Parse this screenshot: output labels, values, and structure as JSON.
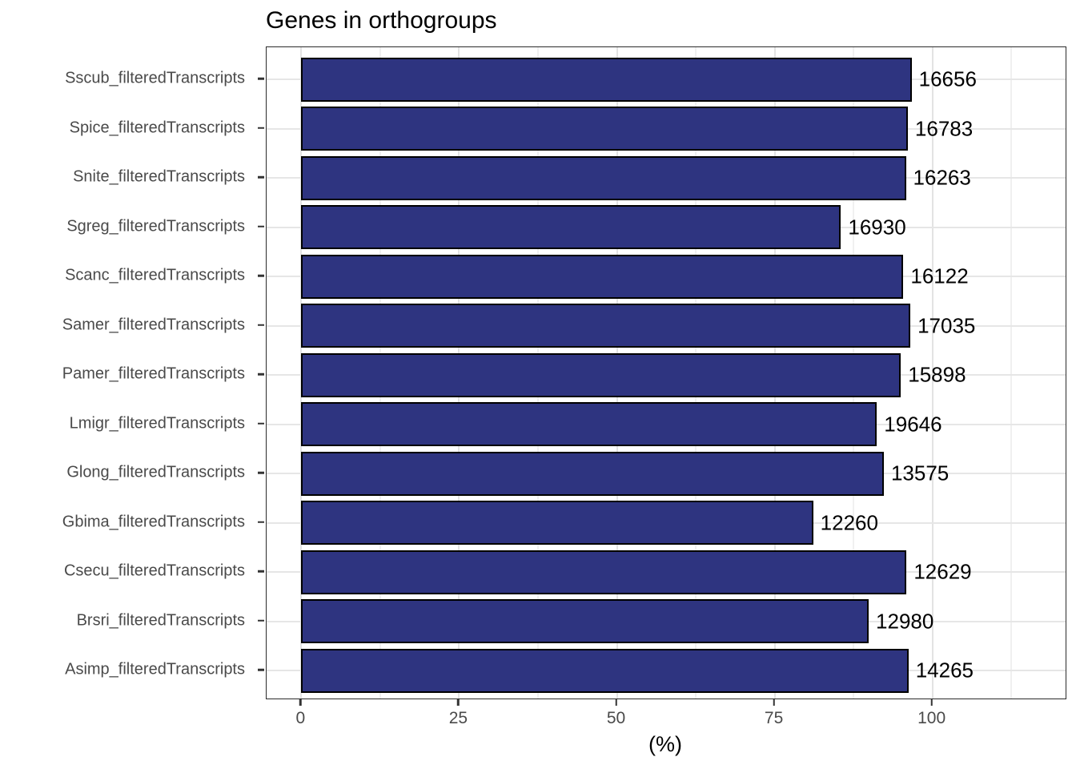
{
  "title": "Genes in orthogroups",
  "chart_data": {
    "type": "bar",
    "orientation": "horizontal",
    "title": "Genes in orthogroups",
    "xlabel": "(%)",
    "ylabel": "",
    "legend": "none",
    "grid": "x-major+minor, y-major",
    "xlim": [
      -5.5,
      121.1
    ],
    "x_ticks": [
      0,
      25,
      50,
      75,
      100
    ],
    "x_minor_ticks": [
      12.5,
      37.5,
      62.5,
      87.5,
      112.5
    ],
    "categories": [
      "Sscub_filteredTranscripts",
      "Spice_filteredTranscripts",
      "Snite_filteredTranscripts",
      "Sgreg_filteredTranscripts",
      "Scanc_filteredTranscripts",
      "Samer_filteredTranscripts",
      "Pamer_filteredTranscripts",
      "Lmigr_filteredTranscripts",
      "Glong_filteredTranscripts",
      "Gbima_filteredTranscripts",
      "Csecu_filteredTranscripts",
      "Brsri_filteredTranscripts",
      "Asimp_filteredTranscripts"
    ],
    "values_percent": [
      96.7,
      96.1,
      95.8,
      85.5,
      95.4,
      96.5,
      95.0,
      91.2,
      92.3,
      81.1,
      95.9,
      89.9,
      96.2
    ],
    "bar_labels": [
      "16656",
      "16783",
      "16263",
      "16930",
      "16122",
      "17035",
      "15898",
      "19646",
      "13575",
      "12260",
      "12629",
      "12980",
      "14265"
    ],
    "colors": {
      "bar_fill": "#2e3480",
      "bar_stroke": "#000000",
      "grid_major": "#e3e3e3",
      "grid_minor": "#f0f0f0",
      "panel_border": "#2b2b2b",
      "axis_text": "#4a4a4a",
      "label_text": "#000000",
      "background": "#ffffff"
    }
  }
}
